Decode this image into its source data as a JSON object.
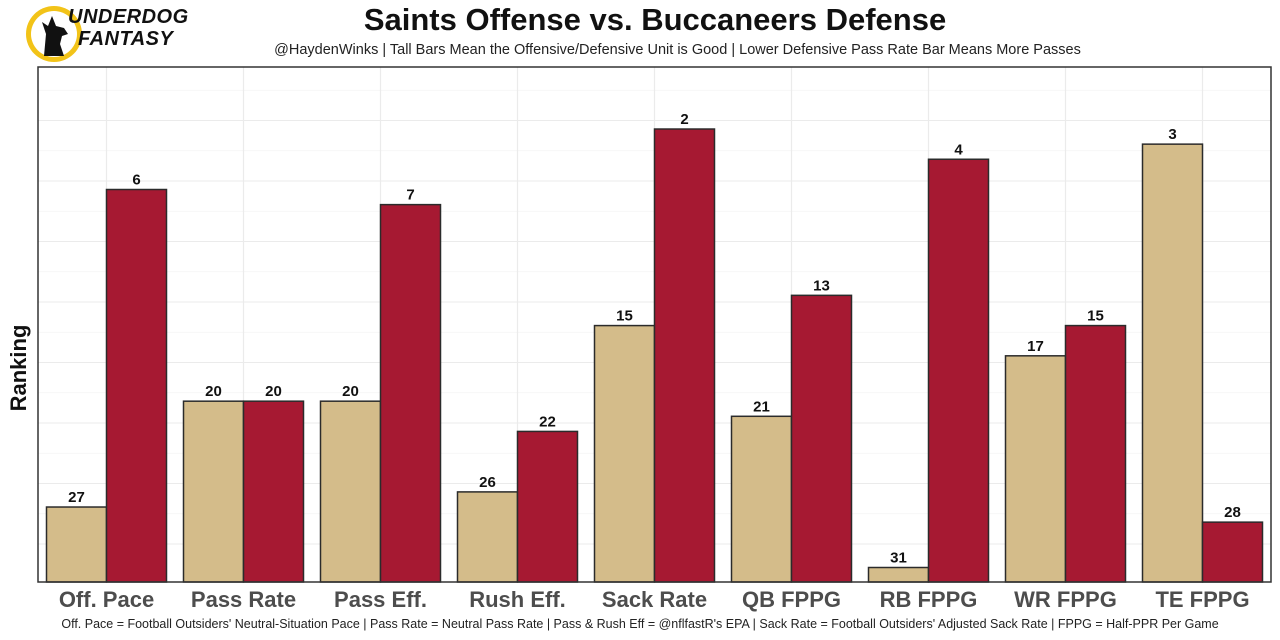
{
  "logo": {
    "line1": "UNDERDOG",
    "line2": "FANTASY"
  },
  "header": {
    "title": "Saints Offense vs. Buccaneers Defense",
    "subtitle": "@HaydenWinks | Tall Bars Mean the Offensive/Defensive Unit is Good | Lower Defensive Pass Rate Bar Means More Passes"
  },
  "footer": {
    "note": "Off. Pace = Football Outsiders' Neutral-Situation Pace | Pass Rate = Neutral Pass Rate | Pass & Rush Eff = @nflfastR's EPA | Sack Rate = Football Outsiders' Adjusted Sack Rate | FPPG = Half-PPR Per Game"
  },
  "chart_data": {
    "type": "bar",
    "title": "Saints Offense vs. Buccaneers Defense",
    "xlabel": "",
    "ylabel": "Ranking",
    "y_scale": "rank (1 = tallest bar, 32 = no bar)",
    "categories": [
      "Off. Pace",
      "Pass Rate",
      "Pass Eff.",
      "Rush Eff.",
      "Sack Rate",
      "QB FPPG",
      "RB FPPG",
      "WR FPPG",
      "TE FPPG"
    ],
    "series": [
      {
        "name": "Saints Offense",
        "color": "#D4BC8A",
        "values": [
          27,
          20,
          20,
          26,
          15,
          21,
          31,
          17,
          3
        ]
      },
      {
        "name": "Buccaneers Defense",
        "color": "#A61932",
        "values": [
          6,
          20,
          7,
          22,
          2,
          13,
          4,
          15,
          28
        ]
      }
    ],
    "grid": true,
    "legend": "none"
  }
}
